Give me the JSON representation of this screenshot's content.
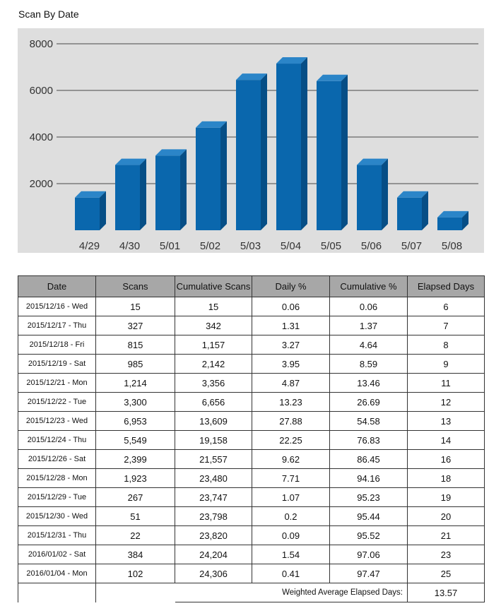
{
  "title": "Scan By Date",
  "colors": {
    "plot_bg": "#dedede",
    "bar_front": "#0a67ad",
    "bar_side": "#064e86",
    "bar_top": "#2b85c8",
    "grid": "#7a7a7a",
    "header_bg": "#a7a7a7"
  },
  "chart_data": {
    "type": "bar",
    "title": "Scan By Date",
    "xlabel": "",
    "ylabel": "",
    "categories": [
      "4/29",
      "4/30",
      "5/01",
      "5/02",
      "5/03",
      "5/04",
      "5/05",
      "5/06",
      "5/07",
      "5/08"
    ],
    "values": [
      1400,
      2800,
      3200,
      4400,
      6450,
      7150,
      6400,
      2800,
      1400,
      550
    ],
    "yticks": [
      2000,
      4000,
      6000,
      8000
    ],
    "ylim": [
      0,
      8000
    ],
    "grid": true,
    "style": "3d-bar"
  },
  "table": {
    "headers": [
      "Date",
      "Scans",
      "Cumulative Scans",
      "Daily %",
      "Cumulative %",
      "Elapsed Days"
    ],
    "rows": [
      [
        "2015/12/16 - Wed",
        "15",
        "15",
        "0.06",
        "0.06",
        "6"
      ],
      [
        "2015/12/17 - Thu",
        "327",
        "342",
        "1.31",
        "1.37",
        "7"
      ],
      [
        "2015/12/18 - Fri",
        "815",
        "1,157",
        "3.27",
        "4.64",
        "8"
      ],
      [
        "2015/12/19 - Sat",
        "985",
        "2,142",
        "3.95",
        "8.59",
        "9"
      ],
      [
        "2015/12/21 - Mon",
        "1,214",
        "3,356",
        "4.87",
        "13.46",
        "11"
      ],
      [
        "2015/12/22 - Tue",
        "3,300",
        "6,656",
        "13.23",
        "26.69",
        "12"
      ],
      [
        "2015/12/23 - Wed",
        "6,953",
        "13,609",
        "27.88",
        "54.58",
        "13"
      ],
      [
        "2015/12/24 - Thu",
        "5,549",
        "19,158",
        "22.25",
        "76.83",
        "14"
      ],
      [
        "2015/12/26 - Sat",
        "2,399",
        "21,557",
        "9.62",
        "86.45",
        "16"
      ],
      [
        "2015/12/28 - Mon",
        "1,923",
        "23,480",
        "7.71",
        "94.16",
        "18"
      ],
      [
        "2015/12/29 - Tue",
        "267",
        "23,747",
        "1.07",
        "95.23",
        "19"
      ],
      [
        "2015/12/30 - Wed",
        "51",
        "23,798",
        "0.2",
        "95.44",
        "20"
      ],
      [
        "2015/12/31 - Thu",
        "22",
        "23,820",
        "0.09",
        "95.52",
        "21"
      ],
      [
        "2016/01/02 - Sat",
        "384",
        "24,204",
        "1.54",
        "97.06",
        "23"
      ],
      [
        "2016/01/04 - Mon",
        "102",
        "24,306",
        "0.41",
        "97.47",
        "25"
      ]
    ],
    "footer_label": "Weighted Average Elapsed Days:",
    "footer_value": "13.57"
  }
}
